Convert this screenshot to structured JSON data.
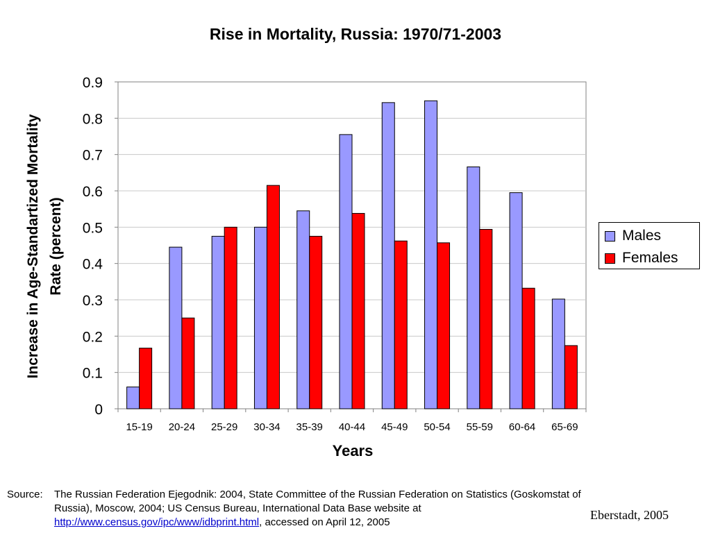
{
  "chart_data": {
    "type": "bar",
    "title": "Rise in Mortality, Russia: 1970/71-2003",
    "xlabel": "Years",
    "ylabel_line1": "Increase in Age-Standartized Mortality",
    "ylabel_line2": "Rate (percent)",
    "ylim": [
      0,
      0.9
    ],
    "yticks": [
      "0",
      "0.1",
      "0.2",
      "0.3",
      "0.4",
      "0.5",
      "0.6",
      "0.7",
      "0.8",
      "0.9"
    ],
    "grid": true,
    "legend_position": "right",
    "categories": [
      "15-19",
      "20-24",
      "25-29",
      "30-34",
      "35-39",
      "40-44",
      "45-49",
      "50-54",
      "55-59",
      "60-64",
      "65-69"
    ],
    "series": [
      {
        "name": "Males",
        "color": "#9999ff",
        "values": [
          0.06,
          0.445,
          0.475,
          0.5,
          0.545,
          0.755,
          0.843,
          0.848,
          0.666,
          0.595,
          0.302
        ]
      },
      {
        "name": "Females",
        "color": "#ff0000",
        "values": [
          0.167,
          0.25,
          0.5,
          0.615,
          0.475,
          0.538,
          0.462,
          0.457,
          0.494,
          0.332,
          0.174
        ]
      }
    ]
  },
  "source": {
    "label": "Source:",
    "text_before_link": "The Russian Federation Ejegodnik: 2004, State Committee of the Russian Federation on Statistics (Goskomstat of Russia), Moscow, 2004;  US Census Bureau, International Data Base website at",
    "link_text": "http://www.census.gov/ipc/www/idbprint.html",
    "text_after_link": ", accessed on April 12, 2005"
  },
  "credit": "Eberstadt, 2005"
}
